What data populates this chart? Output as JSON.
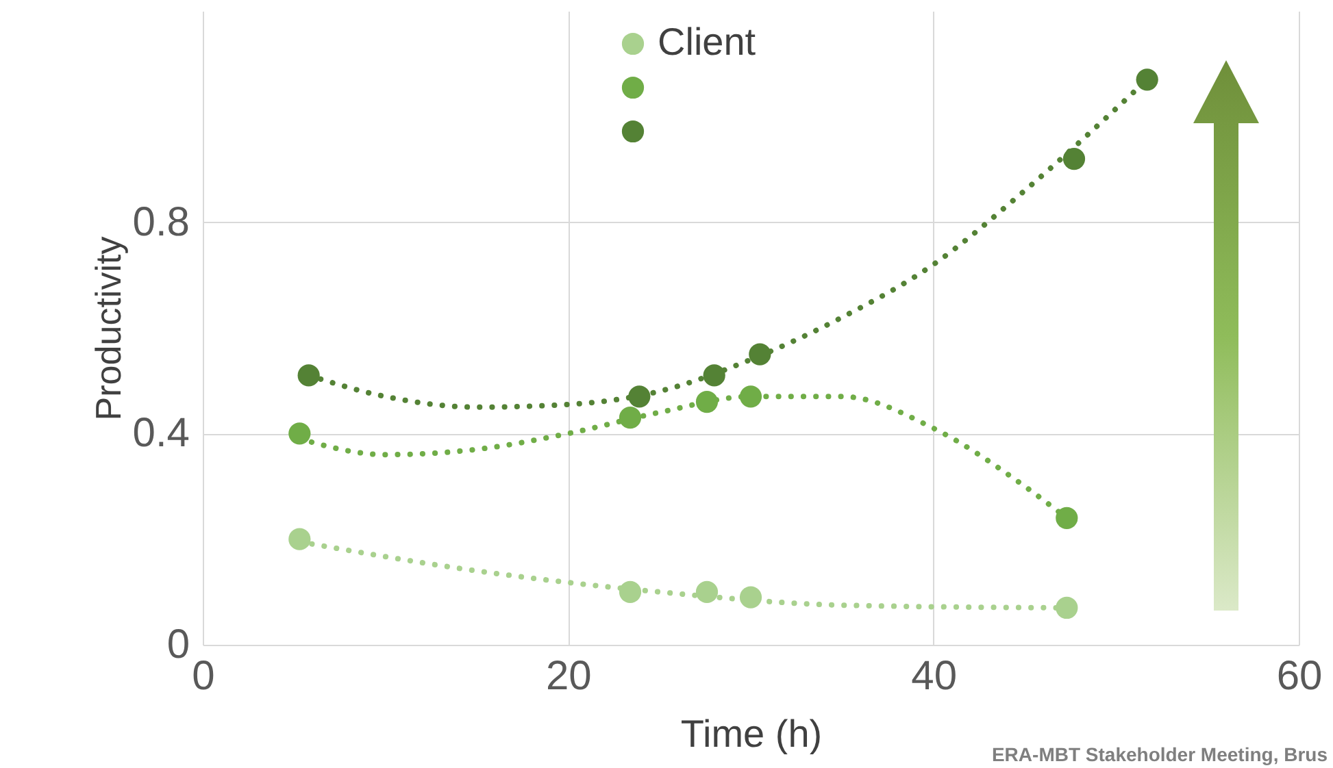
{
  "chart_data": {
    "type": "scatter",
    "xlabel": "Time (h)",
    "ylabel": "Productivity",
    "xlim": [
      0,
      60
    ],
    "xticks": [
      0,
      20,
      40,
      60
    ],
    "ylim": [
      0,
      1.2
    ],
    "yticks": [
      {
        "value": 0,
        "label": "0"
      },
      0.4,
      0.8
    ],
    "grid": true,
    "legend": "top",
    "marker": "circle",
    "annotations": [
      "ERA-MBT Stakeholder Meeting, Brus"
    ],
    "series": [
      {
        "name": "Client",
        "color": "#a9d18e",
        "x": [
          5.3,
          23.4,
          27.6,
          30.0,
          47.3
        ],
        "values": [
          0.2,
          0.1,
          0.1,
          0.09,
          0.07
        ]
      },
      {
        "color": "#70ad47",
        "x": [
          5.3,
          23.4,
          27.6,
          30.0,
          47.3
        ],
        "values": [
          0.4,
          0.43,
          0.46,
          0.47,
          0.24
        ]
      },
      {
        "color": "#548235",
        "x": [
          5.8,
          23.9,
          28.0,
          30.5,
          47.7,
          51.7
        ],
        "values": [
          0.51,
          0.47,
          0.51,
          0.55,
          0.92,
          1.07
        ]
      },
      {
        "type": "line",
        "marker": "none",
        "line_style": "dotted",
        "color": "#a9d18e",
        "x": [
          5.3,
          15,
          25,
          35,
          47.3
        ],
        "values": [
          0.195,
          0.14,
          0.1,
          0.075,
          0.07
        ]
      },
      {
        "type": "line",
        "marker": "none",
        "line_style": "dotted",
        "color": "#70ad47",
        "x": [
          5.3,
          10,
          15,
          20,
          25,
          30,
          35,
          40,
          45,
          47.3
        ],
        "values": [
          0.39,
          0.36,
          0.37,
          0.4,
          0.44,
          0.47,
          0.47,
          0.41,
          0.3,
          0.24
        ]
      },
      {
        "type": "line",
        "marker": "none",
        "line_style": "dotted",
        "color": "#548235",
        "x": [
          5.8,
          10,
          15,
          20,
          25,
          30,
          35,
          40,
          45,
          51.7
        ],
        "values": [
          0.51,
          0.47,
          0.45,
          0.455,
          0.48,
          0.54,
          0.62,
          0.72,
          0.86,
          1.07
        ]
      }
    ]
  }
}
